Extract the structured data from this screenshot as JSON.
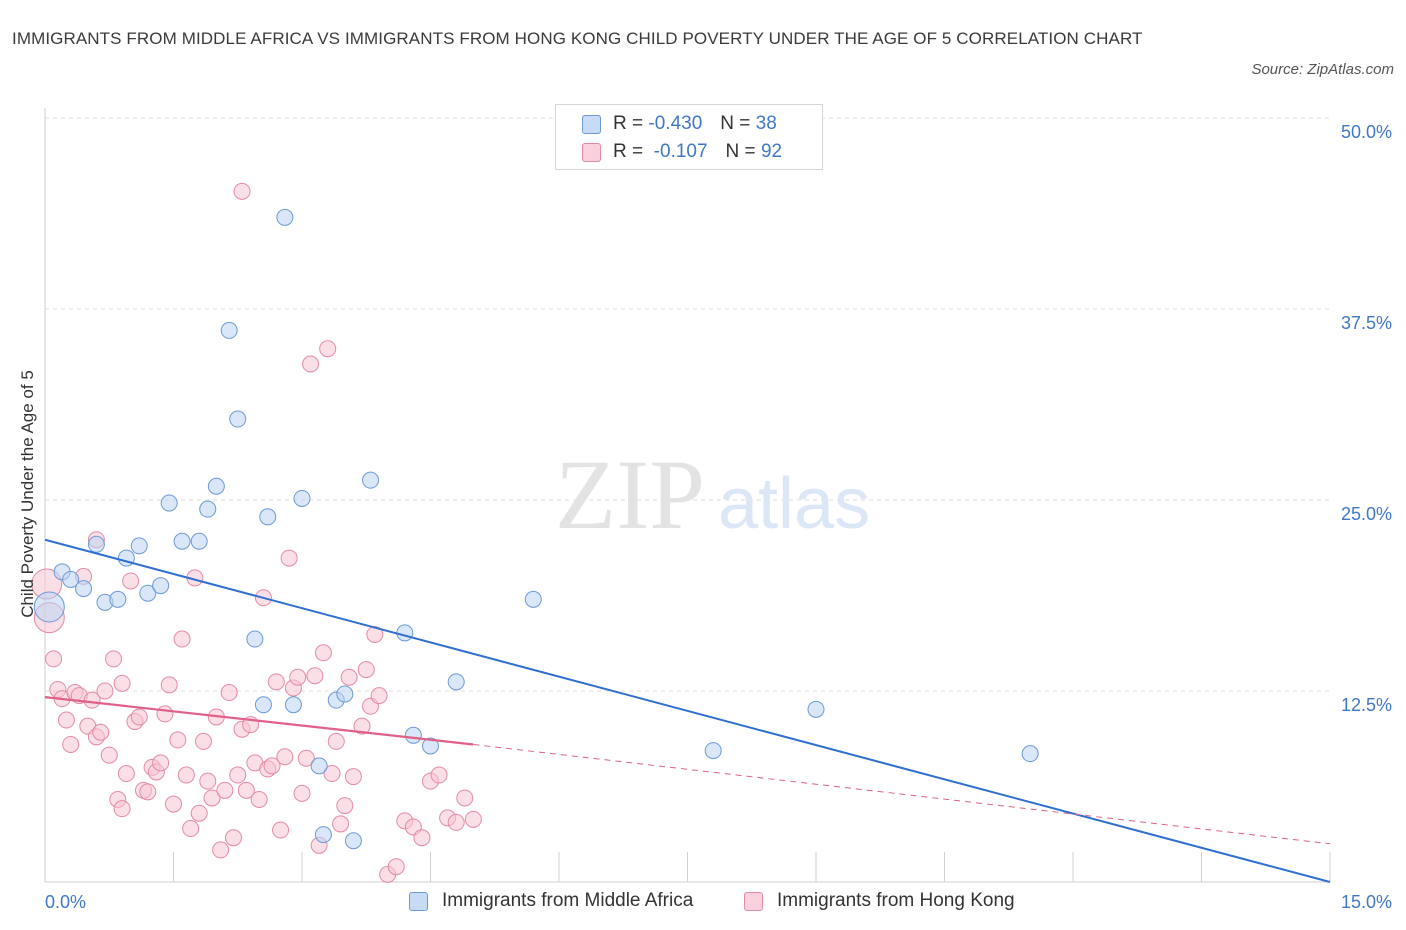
{
  "title": "IMMIGRANTS FROM MIDDLE AFRICA VS IMMIGRANTS FROM HONG KONG CHILD POVERTY UNDER THE AGE OF 5 CORRELATION CHART",
  "source": "Source: ZipAtlas.com",
  "watermark": {
    "zip": "ZIP",
    "atlas": "atlas"
  },
  "legend_top": [
    {
      "r_label": "R =",
      "r_value": "-0.430",
      "n_label": "N =",
      "n_value": "38"
    },
    {
      "r_label": "R =",
      "r_value": "-0.107",
      "n_label": "N =",
      "n_value": "92"
    }
  ],
  "colors": {
    "blue_fill": "#b9d3f3",
    "blue_stroke": "#6c9ad6",
    "blue_line": "#2e6fd0",
    "pink_fill": "#f8c5d4",
    "pink_stroke": "#e58aa7",
    "pink_line": "#e0608a",
    "grid": "#dcdcdc",
    "tick_text": "#3f78c8"
  },
  "chart_data": {
    "type": "scatter",
    "title": "IMMIGRANTS FROM MIDDLE AFRICA VS IMMIGRANTS FROM HONG KONG CHILD POVERTY UNDER THE AGE OF 5 CORRELATION CHART",
    "xlabel": "",
    "ylabel": "Child Poverty Under the Age of 5",
    "xlim": [
      0,
      15
    ],
    "ylim": [
      0,
      50
    ],
    "x_tick_labels": [
      "0.0%",
      "15.0%"
    ],
    "y_ticks": [
      12.5,
      25.0,
      37.5,
      50.0
    ],
    "y_tick_labels": [
      "12.5%",
      "25.0%",
      "37.5%",
      "50.0%"
    ],
    "grid": true,
    "legend": "bottom-center",
    "series": [
      {
        "name": "Immigrants from Middle Africa",
        "color": "blue",
        "r": -0.43,
        "n": 38,
        "trend": {
          "x": [
            0,
            15
          ],
          "y": [
            22.4,
            0.0
          ]
        },
        "points": [
          [
            0.05,
            18.0
          ],
          [
            0.2,
            20.3
          ],
          [
            0.3,
            19.8
          ],
          [
            0.45,
            19.2
          ],
          [
            0.6,
            22.1
          ],
          [
            0.7,
            18.3
          ],
          [
            0.85,
            18.5
          ],
          [
            0.95,
            21.2
          ],
          [
            1.1,
            22.0
          ],
          [
            1.2,
            18.9
          ],
          [
            1.35,
            19.4
          ],
          [
            1.45,
            24.8
          ],
          [
            1.6,
            22.3
          ],
          [
            1.8,
            22.3
          ],
          [
            1.9,
            24.4
          ],
          [
            2.0,
            25.9
          ],
          [
            2.15,
            36.1
          ],
          [
            2.25,
            30.3
          ],
          [
            2.45,
            15.9
          ],
          [
            2.55,
            11.6
          ],
          [
            2.6,
            23.9
          ],
          [
            2.8,
            43.5
          ],
          [
            2.9,
            11.6
          ],
          [
            3.0,
            25.1
          ],
          [
            3.2,
            7.6
          ],
          [
            3.25,
            3.1
          ],
          [
            3.4,
            11.9
          ],
          [
            3.5,
            12.3
          ],
          [
            3.6,
            2.7
          ],
          [
            3.8,
            26.3
          ],
          [
            4.2,
            16.3
          ],
          [
            4.3,
            9.6
          ],
          [
            4.5,
            8.9
          ],
          [
            4.8,
            13.1
          ],
          [
            5.7,
            18.5
          ],
          [
            7.8,
            8.6
          ],
          [
            9.0,
            11.3
          ],
          [
            11.5,
            8.4
          ]
        ]
      },
      {
        "name": "Immigrants from Hong Kong",
        "color": "pink",
        "r": -0.107,
        "n": 92,
        "trend": {
          "x": [
            0,
            5.0
          ],
          "y": [
            12.1,
            9.0
          ]
        },
        "trend_dashed": {
          "x": [
            5.0,
            15
          ],
          "y": [
            9.0,
            2.5
          ]
        },
        "points": [
          [
            0.02,
            19.5
          ],
          [
            0.05,
            17.3
          ],
          [
            0.1,
            14.6
          ],
          [
            0.15,
            12.6
          ],
          [
            0.2,
            12.0
          ],
          [
            0.25,
            10.6
          ],
          [
            0.3,
            9.0
          ],
          [
            0.35,
            12.4
          ],
          [
            0.4,
            12.2
          ],
          [
            0.45,
            20.0
          ],
          [
            0.5,
            10.2
          ],
          [
            0.55,
            11.9
          ],
          [
            0.6,
            9.5
          ],
          [
            0.65,
            9.8
          ],
          [
            0.7,
            12.5
          ],
          [
            0.75,
            8.3
          ],
          [
            0.8,
            14.6
          ],
          [
            0.85,
            5.4
          ],
          [
            0.9,
            13.0
          ],
          [
            0.95,
            7.1
          ],
          [
            1.0,
            19.7
          ],
          [
            1.05,
            10.5
          ],
          [
            1.1,
            10.8
          ],
          [
            1.15,
            6.0
          ],
          [
            1.2,
            5.9
          ],
          [
            1.25,
            7.5
          ],
          [
            1.3,
            7.2
          ],
          [
            1.35,
            7.8
          ],
          [
            1.4,
            11.0
          ],
          [
            1.45,
            12.9
          ],
          [
            1.5,
            5.1
          ],
          [
            1.55,
            9.3
          ],
          [
            1.6,
            15.9
          ],
          [
            1.65,
            7.0
          ],
          [
            1.7,
            3.5
          ],
          [
            1.75,
            19.9
          ],
          [
            1.8,
            4.5
          ],
          [
            1.85,
            9.2
          ],
          [
            1.9,
            6.6
          ],
          [
            1.95,
            5.5
          ],
          [
            2.0,
            10.8
          ],
          [
            2.05,
            2.1
          ],
          [
            2.1,
            6.0
          ],
          [
            2.15,
            12.4
          ],
          [
            2.2,
            2.9
          ],
          [
            2.25,
            7.0
          ],
          [
            2.3,
            10.0
          ],
          [
            2.35,
            6.0
          ],
          [
            2.4,
            10.3
          ],
          [
            2.45,
            7.8
          ],
          [
            2.5,
            5.4
          ],
          [
            2.55,
            18.6
          ],
          [
            2.6,
            7.4
          ],
          [
            2.65,
            7.6
          ],
          [
            2.7,
            13.1
          ],
          [
            2.75,
            3.4
          ],
          [
            2.8,
            8.2
          ],
          [
            2.85,
            21.2
          ],
          [
            2.9,
            12.7
          ],
          [
            2.95,
            13.4
          ],
          [
            3.0,
            5.8
          ],
          [
            3.05,
            8.1
          ],
          [
            3.1,
            33.9
          ],
          [
            3.15,
            13.5
          ],
          [
            3.2,
            2.4
          ],
          [
            3.25,
            15.0
          ],
          [
            3.3,
            34.9
          ],
          [
            3.35,
            7.1
          ],
          [
            3.4,
            9.2
          ],
          [
            3.45,
            3.8
          ],
          [
            3.5,
            5.0
          ],
          [
            3.55,
            13.4
          ],
          [
            3.6,
            6.9
          ],
          [
            3.7,
            10.2
          ],
          [
            3.75,
            13.9
          ],
          [
            3.8,
            11.5
          ],
          [
            3.85,
            16.2
          ],
          [
            3.9,
            12.2
          ],
          [
            4.0,
            0.5
          ],
          [
            4.1,
            1.0
          ],
          [
            4.2,
            4.0
          ],
          [
            4.3,
            3.6
          ],
          [
            4.4,
            2.9
          ],
          [
            4.5,
            6.6
          ],
          [
            4.6,
            7.0
          ],
          [
            4.7,
            4.2
          ],
          [
            4.8,
            3.9
          ],
          [
            4.9,
            5.5
          ],
          [
            5.0,
            4.1
          ],
          [
            0.6,
            22.4
          ],
          [
            0.9,
            4.8
          ],
          [
            2.3,
            45.2
          ]
        ]
      }
    ]
  }
}
